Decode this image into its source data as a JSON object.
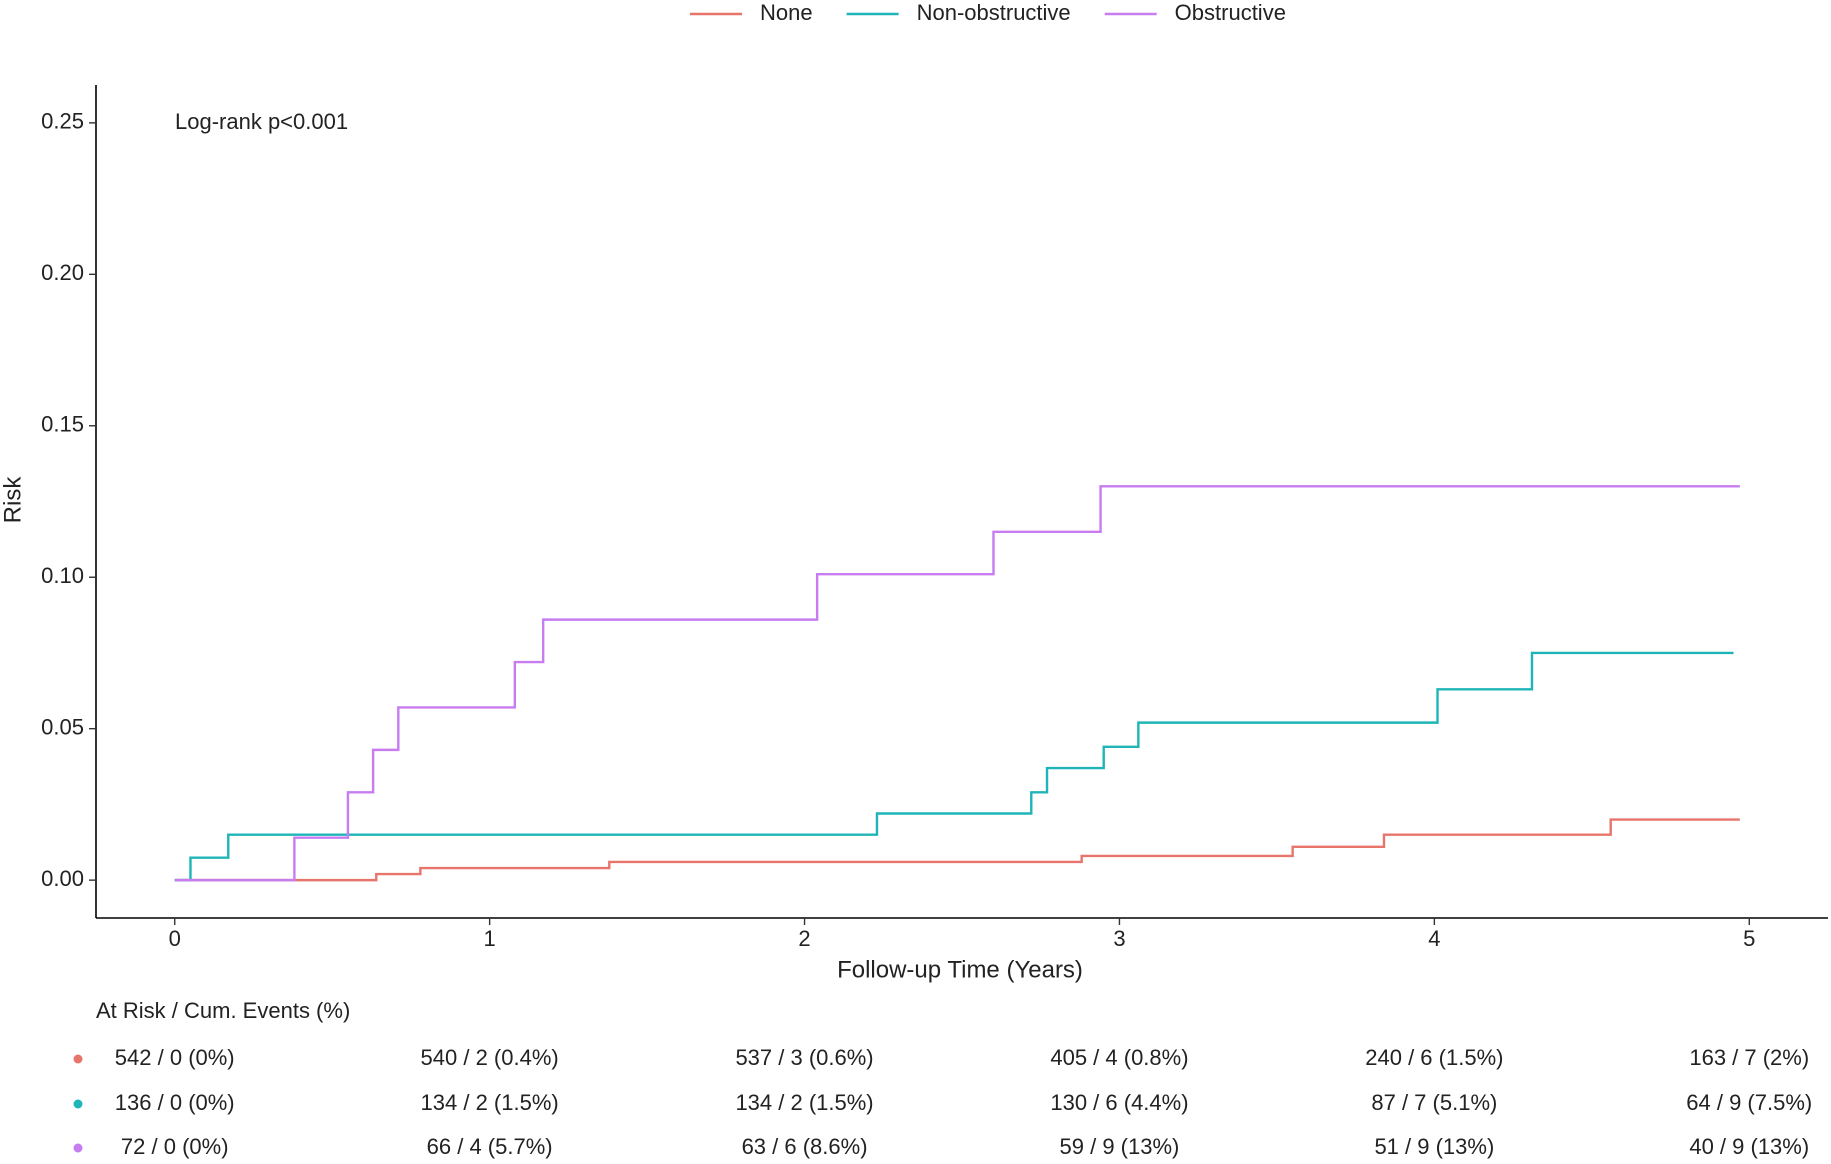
{
  "chart_data": {
    "type": "step",
    "ylabel": "Risk",
    "xlabel": "Follow-up Time (Years)",
    "annotation": "Log-rank p<0.001",
    "xlim": [
      -0.25,
      5.25
    ],
    "ylim": [
      -0.0125,
      0.2625
    ],
    "xticks": [
      0,
      1,
      2,
      3,
      4,
      5
    ],
    "yticks": [
      {
        "value": 0,
        "label": "0.00"
      },
      {
        "value": 0.05,
        "label": "0.05"
      },
      {
        "value": 0.1,
        "label": "0.10"
      },
      {
        "value": 0.15,
        "label": "0.15"
      },
      {
        "value": 0.2,
        "label": "0.20"
      },
      {
        "value": 0.25,
        "label": "0.25"
      }
    ],
    "legend": "top",
    "series": [
      {
        "name": "None",
        "color": "#e8756b",
        "x": [
          0,
          0.64,
          0.78,
          1.38,
          2.88,
          3.55,
          3.84,
          4.56,
          4.97
        ],
        "values": [
          0,
          0.002,
          0.004,
          0.006,
          0.008,
          0.011,
          0.015,
          0.02,
          0.02
        ]
      },
      {
        "name": "Non-obstructive",
        "color": "#1fb5b8",
        "x": [
          0,
          0.05,
          0.17,
          2.23,
          2.72,
          2.77,
          2.95,
          3.06,
          4.01,
          4.31,
          4.95
        ],
        "values": [
          0,
          0.0074,
          0.015,
          0.022,
          0.029,
          0.037,
          0.044,
          0.052,
          0.063,
          0.075,
          0.075
        ]
      },
      {
        "name": "Obstructive",
        "color": "#c77cf0",
        "x": [
          0,
          0.38,
          0.55,
          0.63,
          0.71,
          1.08,
          1.17,
          2.04,
          2.6,
          2.94,
          4.97
        ],
        "values": [
          0,
          0.014,
          0.029,
          0.043,
          0.057,
          0.072,
          0.086,
          0.101,
          0.115,
          0.13,
          0.13
        ]
      }
    ],
    "risk_table": {
      "title": "At Risk / Cum. Events (%)",
      "rows": [
        [
          "542 / 0 (0%)",
          "540 / 2 (0.4%)",
          "537 / 3 (0.6%)",
          "405 / 4 (0.8%)",
          "240 / 6 (1.5%)",
          "163 / 7 (2%)"
        ],
        [
          "136 / 0 (0%)",
          "134 / 2 (1.5%)",
          "134 / 2 (1.5%)",
          "130 / 6 (4.4%)",
          "87 / 7 (5.1%)",
          "64 / 9 (7.5%)"
        ],
        [
          "72 / 0 (0%)",
          "66 / 4 (5.7%)",
          "63 / 6 (8.6%)",
          "59 / 9 (13%)",
          "51 / 9 (13%)",
          "40 / 9 (13%)"
        ]
      ]
    }
  }
}
